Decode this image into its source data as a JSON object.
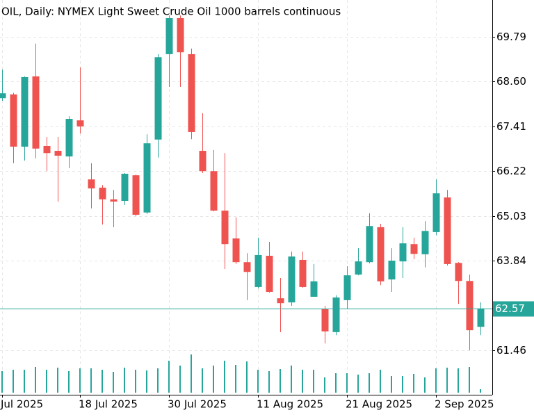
{
  "chart_data": {
    "type": "candlestick",
    "title": "OIL, Daily:  NYMEX Light Sweet Crude Oil 1000 barrels continuous",
    "categories": [
      "Jul 2025",
      null,
      null,
      null,
      null,
      null,
      null,
      "18 Jul 2025",
      null,
      null,
      null,
      null,
      null,
      null,
      null,
      "30 Jul 2025",
      null,
      null,
      null,
      null,
      null,
      null,
      null,
      "11 Aug 2025",
      null,
      null,
      null,
      null,
      null,
      null,
      null,
      "21 Aug 2025",
      null,
      null,
      null,
      null,
      null,
      null,
      null,
      "2 Sep 2025",
      null,
      null,
      null,
      null
    ],
    "open": [
      68.16,
      68.26,
      66.87,
      68.74,
      66.89,
      66.76,
      66.61,
      67.57,
      66.0,
      65.78,
      65.47,
      65.43,
      66.11,
      65.12,
      67.06,
      69.33,
      70.29,
      69.33,
      66.76,
      66.22,
      65.17,
      64.43,
      63.8,
      63.14,
      63.97,
      62.84,
      62.73,
      63.86,
      62.88,
      62.55,
      61.94,
      62.79,
      63.47,
      63.8,
      64.73,
      63.34,
      63.82,
      64.28,
      64.01,
      64.6,
      65.52,
      63.78,
      63.3,
      62.08
    ],
    "high": [
      68.92,
      68.3,
      68.74,
      69.61,
      67.13,
      67.13,
      67.68,
      68.98,
      66.43,
      65.85,
      65.72,
      66.17,
      66.13,
      67.2,
      69.33,
      70.36,
      70.36,
      69.48,
      67.76,
      66.78,
      66.7,
      64.99,
      64.04,
      64.45,
      64.34,
      63.38,
      64.08,
      64.08,
      63.75,
      62.64,
      62.92,
      63.69,
      64.17,
      65.1,
      64.82,
      64.17,
      64.73,
      64.45,
      64.89,
      66.0,
      65.72,
      63.8,
      63.47,
      62.73
    ],
    "low": [
      68.09,
      66.43,
      66.5,
      66.56,
      66.22,
      65.41,
      66.3,
      67.22,
      65.23,
      64.8,
      64.73,
      65.32,
      65.02,
      65.08,
      66.58,
      68.46,
      68.46,
      67.07,
      66.17,
      65.15,
      63.62,
      63.75,
      62.79,
      63.1,
      62.99,
      61.94,
      62.64,
      63.12,
      62.88,
      61.64,
      61.86,
      62.55,
      63.45,
      63.77,
      63.19,
      63.01,
      63.38,
      63.88,
      63.66,
      64.52,
      63.71,
      62.69,
      61.46,
      61.86
    ],
    "close": [
      68.29,
      66.87,
      68.72,
      66.82,
      66.7,
      66.63,
      67.61,
      67.41,
      65.76,
      65.47,
      65.41,
      66.15,
      65.06,
      66.96,
      69.25,
      70.29,
      69.38,
      67.26,
      66.22,
      65.17,
      64.28,
      63.8,
      63.54,
      63.99,
      63.01,
      62.71,
      63.95,
      63.14,
      63.29,
      61.96,
      62.86,
      63.45,
      63.82,
      64.76,
      63.29,
      63.84,
      64.3,
      64.02,
      64.63,
      65.63,
      63.75,
      63.3,
      61.99,
      62.57
    ],
    "volumes": [
      31,
      33,
      33,
      37,
      33,
      36,
      31,
      35,
      35,
      33,
      30,
      36,
      33,
      32,
      35,
      46,
      39,
      55,
      35,
      39,
      46,
      40,
      45,
      33,
      31,
      34,
      39,
      33,
      33,
      22,
      28,
      28,
      26,
      28,
      33,
      24,
      24,
      27,
      22,
      35,
      36,
      35,
      37,
      5
    ],
    "up_color": "#26a69a",
    "down_color": "#ef5350",
    "volume_color": "#26a69a",
    "ylim": [
      60.33,
      70.77
    ],
    "yticks": [
      61.46,
      63.84,
      65.03,
      66.22,
      67.41,
      {
        "value": 68.6,
        "label": "68.60"
      },
      69.79
    ],
    "grid": true,
    "current_price": 62.57
  }
}
